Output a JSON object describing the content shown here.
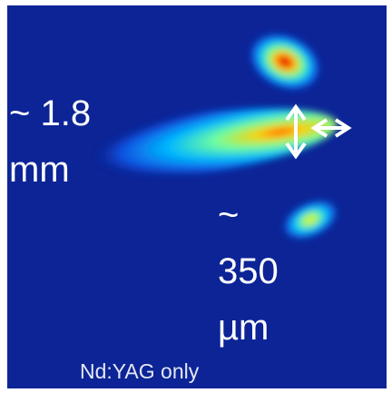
{
  "labels": {
    "width": "~ 1.8 mm",
    "height": "~ 350 µm",
    "caption": "Nd:YAG only"
  }
}
